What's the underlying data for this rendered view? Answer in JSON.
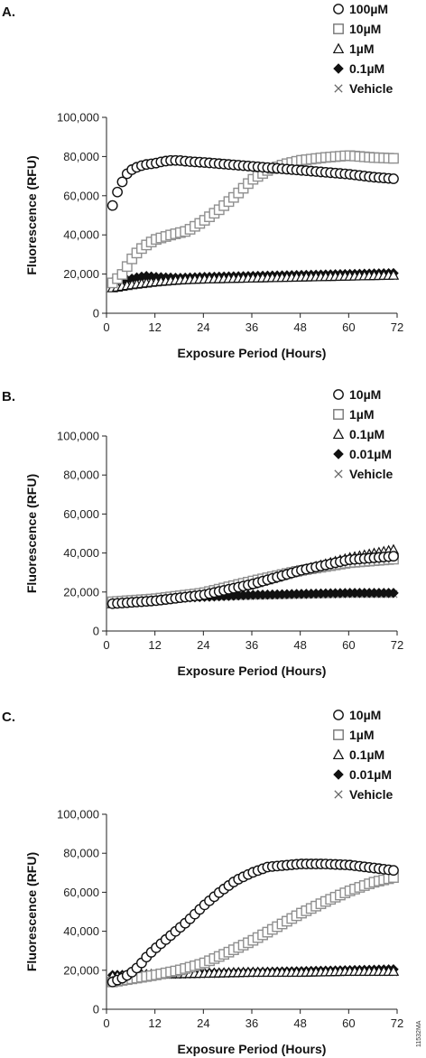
{
  "figure_code": "11532MA",
  "chart_data": [
    {
      "panel": "A.",
      "type": "scatter",
      "xlabel": "Exposure Period (Hours)",
      "ylabel": "Fluorescence (RFU)",
      "xlim": [
        0,
        72
      ],
      "ylim": [
        0,
        100000
      ],
      "xticks": [
        0,
        12,
        24,
        36,
        48,
        60,
        72
      ],
      "yticks": [
        0,
        20000,
        40000,
        60000,
        80000,
        100000
      ],
      "xtick_labels": [
        "0",
        "12",
        "24",
        "36",
        "48",
        "60",
        "72"
      ],
      "ytick_labels": [
        "0",
        "20,000",
        "40,000",
        "60,000",
        "80,000",
        "100,000"
      ],
      "grid": false,
      "legend_position": "top-right",
      "series": [
        {
          "name": "100µM",
          "marker": "circle",
          "color": "#111111",
          "points": [
            [
              1.5,
              55000
            ],
            [
              2.5,
              61000
            ],
            [
              4,
              67500
            ],
            [
              5,
              71000
            ],
            [
              6,
              73000
            ],
            [
              8,
              75000
            ],
            [
              10,
              76000
            ],
            [
              12,
              76500
            ],
            [
              14,
              77500
            ],
            [
              16,
              78000
            ],
            [
              18,
              78000
            ],
            [
              20,
              77500
            ],
            [
              24,
              77000
            ],
            [
              30,
              76000
            ],
            [
              36,
              75000
            ],
            [
              42,
              74000
            ],
            [
              48,
              73000
            ],
            [
              54,
              72000
            ],
            [
              60,
              71000
            ],
            [
              66,
              69500
            ],
            [
              72,
              68500
            ]
          ]
        },
        {
          "name": "10µM",
          "marker": "square",
          "color": "#8f8f8f",
          "points": [
            [
              1.5,
              15500
            ],
            [
              4,
              20000
            ],
            [
              6,
              27000
            ],
            [
              8,
              32000
            ],
            [
              10,
              35000
            ],
            [
              12,
              37500
            ],
            [
              16,
              40000
            ],
            [
              20,
              42000
            ],
            [
              24,
              47000
            ],
            [
              28,
              53000
            ],
            [
              32,
              60000
            ],
            [
              36,
              68000
            ],
            [
              40,
              73000
            ],
            [
              44,
              76000
            ],
            [
              48,
              78000
            ],
            [
              54,
              79500
            ],
            [
              60,
              80500
            ],
            [
              66,
              79500
            ],
            [
              72,
              79000
            ]
          ]
        },
        {
          "name": "1µM",
          "marker": "triangle",
          "color": "#111111",
          "points": [
            [
              1.5,
              13000
            ],
            [
              6,
              14500
            ],
            [
              12,
              16000
            ],
            [
              18,
              17000
            ],
            [
              24,
              17500
            ],
            [
              36,
              18000
            ],
            [
              48,
              18500
            ],
            [
              60,
              19000
            ],
            [
              72,
              19500
            ]
          ]
        },
        {
          "name": "0.1µM",
          "marker": "diamond",
          "color": "#111111",
          "points": [
            [
              1.5,
              16000
            ],
            [
              4,
              16500
            ],
            [
              6,
              17500
            ],
            [
              8,
              18500
            ],
            [
              10,
              19000
            ],
            [
              12,
              18500
            ],
            [
              18,
              18000
            ],
            [
              24,
              18500
            ],
            [
              36,
              19000
            ],
            [
              48,
              19500
            ],
            [
              60,
              20000
            ],
            [
              72,
              20500
            ]
          ]
        },
        {
          "name": "Vehicle",
          "marker": "x",
          "color": "#888888",
          "points": [
            [
              1.5,
              15000
            ],
            [
              12,
              16500
            ],
            [
              24,
              17500
            ],
            [
              36,
              18000
            ],
            [
              48,
              18500
            ],
            [
              60,
              19000
            ],
            [
              72,
              19000
            ]
          ]
        }
      ]
    },
    {
      "panel": "B.",
      "type": "scatter",
      "xlabel": "Exposure Period (Hours)",
      "ylabel": "Fluorescence (RFU)",
      "xlim": [
        0,
        72
      ],
      "ylim": [
        0,
        100000
      ],
      "xticks": [
        0,
        12,
        24,
        36,
        48,
        60,
        72
      ],
      "yticks": [
        0,
        20000,
        40000,
        60000,
        80000,
        100000
      ],
      "xtick_labels": [
        "0",
        "12",
        "24",
        "36",
        "48",
        "60",
        "72"
      ],
      "ytick_labels": [
        "0",
        "20,000",
        "40,000",
        "60,000",
        "80,000",
        "100,000"
      ],
      "grid": false,
      "legend_position": "top-right",
      "series": [
        {
          "name": "10µM",
          "marker": "circle",
          "color": "#111111",
          "points": [
            [
              1.5,
              14000
            ],
            [
              12,
              15500
            ],
            [
              24,
              18500
            ],
            [
              36,
              24000
            ],
            [
              48,
              31000
            ],
            [
              60,
              36500
            ],
            [
              72,
              38500
            ]
          ]
        },
        {
          "name": "1µM",
          "marker": "square",
          "color": "#8f8f8f",
          "points": [
            [
              1.5,
              15000
            ],
            [
              12,
              16500
            ],
            [
              24,
              19500
            ],
            [
              36,
              25500
            ],
            [
              48,
              31000
            ],
            [
              60,
              35000
            ],
            [
              72,
              37000
            ]
          ]
        },
        {
          "name": "0.1µM",
          "marker": "triangle",
          "color": "#111111",
          "points": [
            [
              1.5,
              14000
            ],
            [
              12,
              15500
            ],
            [
              24,
              18500
            ],
            [
              36,
              24000
            ],
            [
              48,
              31000
            ],
            [
              60,
              37500
            ],
            [
              72,
              42000
            ]
          ]
        },
        {
          "name": "0.01µM",
          "marker": "diamond",
          "color": "#111111",
          "points": [
            [
              1.5,
              15000
            ],
            [
              12,
              16500
            ],
            [
              24,
              17500
            ],
            [
              36,
              18500
            ],
            [
              48,
              19000
            ],
            [
              60,
              19500
            ],
            [
              72,
              19500
            ]
          ]
        },
        {
          "name": "Vehicle",
          "marker": "x",
          "color": "#888888",
          "points": [
            [
              1.5,
              15500
            ],
            [
              12,
              16500
            ],
            [
              24,
              17500
            ],
            [
              36,
              18000
            ],
            [
              48,
              18500
            ],
            [
              60,
              19000
            ],
            [
              72,
              19000
            ]
          ]
        }
      ]
    },
    {
      "panel": "C.",
      "type": "scatter",
      "xlabel": "Exposure Period (Hours)",
      "ylabel": "Fluorescence (RFU)",
      "xlim": [
        0,
        72
      ],
      "ylim": [
        0,
        100000
      ],
      "xticks": [
        0,
        12,
        24,
        36,
        48,
        60,
        72
      ],
      "yticks": [
        0,
        20000,
        40000,
        60000,
        80000,
        100000
      ],
      "xtick_labels": [
        "0",
        "12",
        "24",
        "36",
        "48",
        "60",
        "72"
      ],
      "ytick_labels": [
        "0",
        "20,000",
        "40,000",
        "60,000",
        "80,000",
        "100,000"
      ],
      "grid": false,
      "legend_position": "top-right",
      "series": [
        {
          "name": "10µM",
          "marker": "circle",
          "color": "#111111",
          "points": [
            [
              1.5,
              14000
            ],
            [
              4,
              16000
            ],
            [
              6,
              18500
            ],
            [
              8,
              22000
            ],
            [
              10,
              27000
            ],
            [
              12,
              31000
            ],
            [
              16,
              38000
            ],
            [
              20,
              45000
            ],
            [
              24,
              53000
            ],
            [
              28,
              60000
            ],
            [
              32,
              66000
            ],
            [
              36,
              70000
            ],
            [
              40,
              73000
            ],
            [
              48,
              74500
            ],
            [
              54,
              74500
            ],
            [
              60,
              74000
            ],
            [
              66,
              72500
            ],
            [
              72,
              71000
            ]
          ]
        },
        {
          "name": "1µM",
          "marker": "square",
          "color": "#8f8f8f",
          "points": [
            [
              1.5,
              14000
            ],
            [
              6,
              15500
            ],
            [
              12,
              17500
            ],
            [
              18,
              20000
            ],
            [
              24,
              23500
            ],
            [
              30,
              29000
            ],
            [
              36,
              35000
            ],
            [
              42,
              42000
            ],
            [
              48,
              49000
            ],
            [
              54,
              55000
            ],
            [
              60,
              60500
            ],
            [
              66,
              65000
            ],
            [
              72,
              68000
            ]
          ]
        },
        {
          "name": "0.1µM",
          "marker": "triangle",
          "color": "#111111",
          "points": [
            [
              1.5,
              17000
            ],
            [
              12,
              18000
            ],
            [
              24,
              18500
            ],
            [
              36,
              19000
            ],
            [
              48,
              19000
            ],
            [
              60,
              19500
            ],
            [
              72,
              19500
            ]
          ]
        },
        {
          "name": "0.01µM",
          "marker": "diamond",
          "color": "#111111",
          "points": [
            [
              1.5,
              17500
            ],
            [
              12,
              18000
            ],
            [
              24,
              18500
            ],
            [
              36,
              19000
            ],
            [
              48,
              19500
            ],
            [
              60,
              20000
            ],
            [
              72,
              20500
            ]
          ]
        },
        {
          "name": "Vehicle",
          "marker": "x",
          "color": "#888888",
          "points": [
            [
              1.5,
              16500
            ],
            [
              12,
              17500
            ],
            [
              24,
              18000
            ],
            [
              36,
              18500
            ],
            [
              48,
              18500
            ],
            [
              60,
              19000
            ],
            [
              72,
              19000
            ]
          ]
        }
      ]
    }
  ]
}
